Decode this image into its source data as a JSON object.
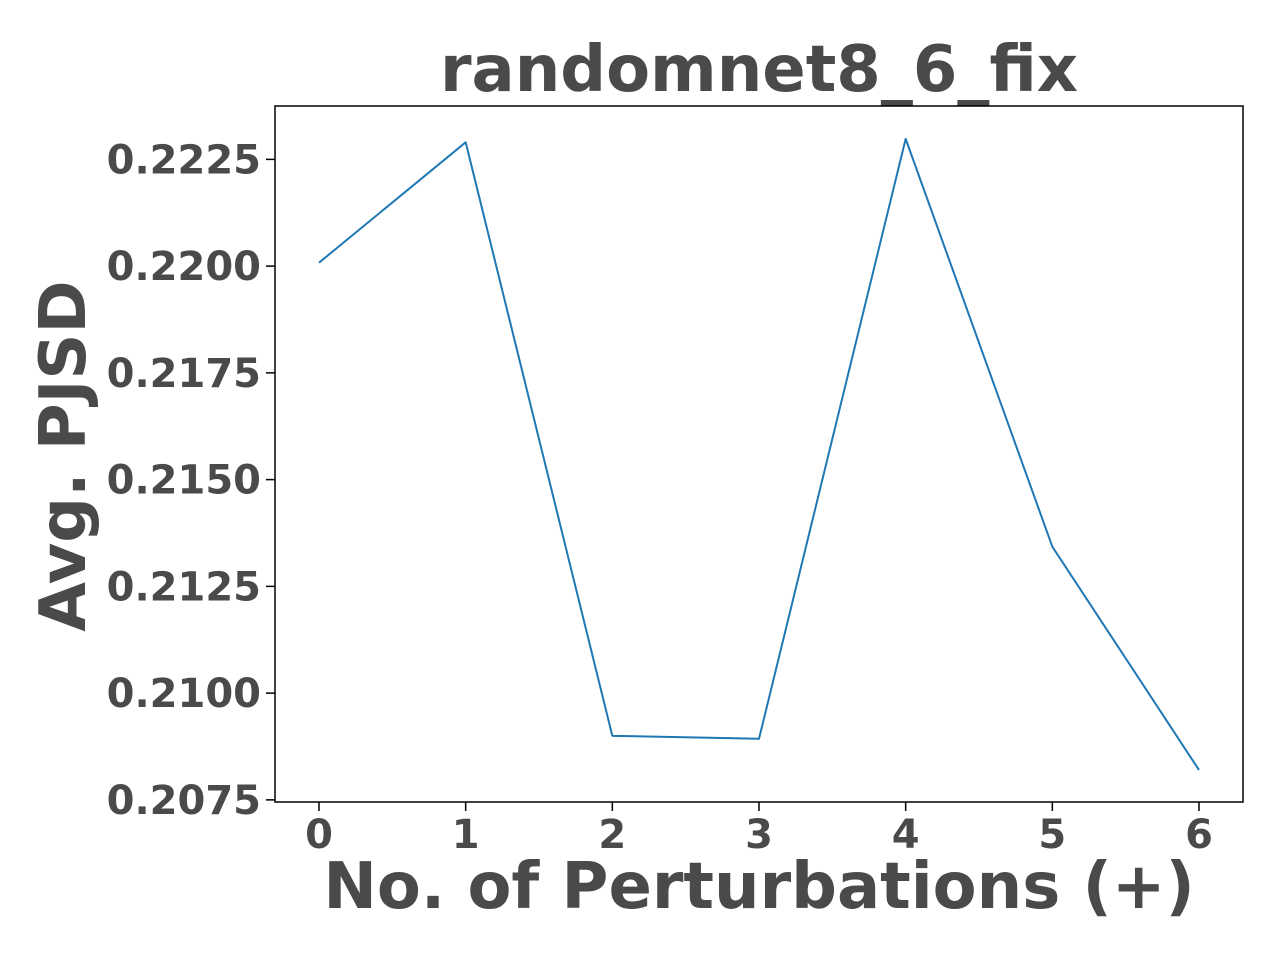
{
  "chart_data": {
    "type": "line",
    "title": "randomnet8_6_fix",
    "xlabel": "No. of Perturbations (+)",
    "ylabel": "Avg. PJSD",
    "x": [
      0,
      1,
      2,
      3,
      4,
      5,
      6
    ],
    "x_tick_labels": [
      "0",
      "1",
      "2",
      "3",
      "4",
      "5",
      "6"
    ],
    "y_tick_labels": [
      "0.2075",
      "0.2100",
      "0.2125",
      "0.2150",
      "0.2175",
      "0.2200",
      "0.2225"
    ],
    "y_ticks": [
      0.2075,
      0.21,
      0.2125,
      0.215,
      0.2175,
      0.22,
      0.2225
    ],
    "xlim": [
      -0.3,
      6.3
    ],
    "ylim": [
      0.20745,
      0.22375
    ],
    "series": [
      {
        "values": [
          0.22008,
          0.2229,
          0.209,
          0.20893,
          0.22298,
          0.21343,
          0.2082
        ],
        "color": "#1f77b4"
      }
    ],
    "grid": false,
    "text_color": "#4a4a4a"
  }
}
